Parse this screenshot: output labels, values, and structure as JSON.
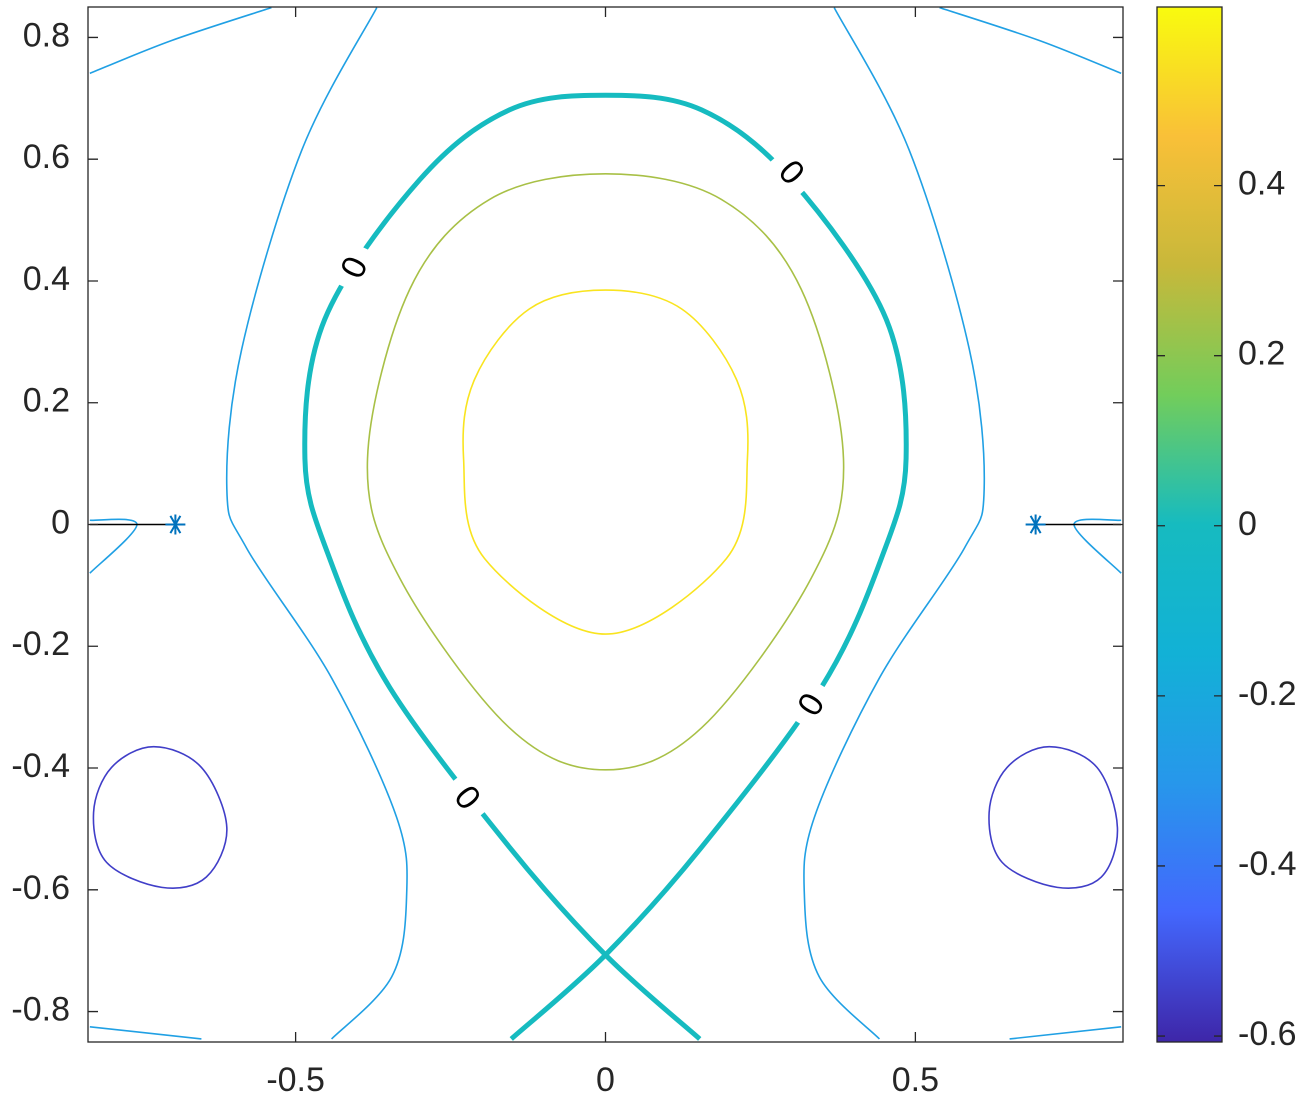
{
  "chart_data": {
    "type": "contour",
    "xlim": [
      -0.835,
      0.835
    ],
    "ylim": [
      -0.85,
      0.85
    ],
    "xticks": [
      -0.5,
      0,
      0.5
    ],
    "yticks": [
      -0.8,
      -0.6,
      -0.4,
      -0.2,
      0,
      0.2,
      0.4,
      0.6,
      0.8
    ],
    "contours": [
      {
        "level": 0.55,
        "closed": true,
        "x": [
          0,
          0.123,
          0.211,
          0.229,
          0.195,
          0,
          -0.195,
          -0.229,
          -0.211,
          -0.123
        ],
        "y": [
          0.385,
          0.354,
          0.239,
          0.108,
          -0.056,
          -0.18,
          -0.056,
          0.108,
          0.239,
          0.354
        ]
      },
      {
        "level": 0.25,
        "closed": true,
        "x": [
          0,
          0.187,
          0.316,
          0.384,
          0.332,
          0.155,
          0,
          -0.155,
          -0.332,
          -0.384,
          -0.316,
          -0.187
        ],
        "y": [
          0.576,
          0.534,
          0.386,
          0.108,
          -0.088,
          -0.334,
          -0.403,
          -0.334,
          -0.088,
          0.108,
          0.386,
          0.534
        ]
      },
      {
        "level": 0,
        "closed": false,
        "bold": true,
        "x": [
          -0.152,
          0,
          0.155,
          0.348,
          0.445,
          0.485,
          0.453,
          0.3,
          0.155,
          0,
          -0.155,
          -0.3,
          -0.453,
          -0.485,
          -0.445,
          -0.348,
          -0.155,
          0,
          0.152
        ],
        "y": [
          -0.845,
          -0.707,
          -0.53,
          -0.268,
          -0.056,
          0.108,
          0.337,
          0.566,
          0.681,
          0.705,
          0.681,
          0.566,
          0.337,
          0.108,
          -0.056,
          -0.268,
          -0.53,
          -0.707,
          -0.845
        ]
      },
      {
        "level": -0.25,
        "closed": false,
        "x": [
          -0.369,
          -0.49,
          -0.587,
          -0.611,
          -0.579,
          -0.442,
          -0.337,
          -0.321,
          -0.345,
          -0.442
        ],
        "y": [
          0.849,
          0.615,
          0.288,
          0.059,
          -0.039,
          -0.252,
          -0.481,
          -0.612,
          -0.743,
          -0.845
        ]
      },
      {
        "level": -0.25,
        "closed": false,
        "x": [
          0.369,
          0.49,
          0.587,
          0.611,
          0.579,
          0.442,
          0.337,
          0.321,
          0.345,
          0.442
        ],
        "y": [
          0.849,
          0.615,
          0.288,
          0.059,
          -0.039,
          -0.252,
          -0.481,
          -0.612,
          -0.743,
          -0.845
        ]
      },
      {
        "level": -0.25,
        "closed": false,
        "x": [
          -0.832,
          -0.7,
          -0.539
        ],
        "y": [
          0.741,
          0.795,
          0.849
        ]
      },
      {
        "level": -0.25,
        "closed": false,
        "x": [
          0.832,
          0.7,
          0.539
        ],
        "y": [
          0.741,
          0.795,
          0.849
        ]
      },
      {
        "level": -0.25,
        "closed": false,
        "x": [
          -0.832,
          -0.652
        ],
        "y": [
          -0.825,
          -0.845
        ]
      },
      {
        "level": -0.25,
        "closed": false,
        "x": [
          0.832,
          0.652
        ],
        "y": [
          -0.825,
          -0.845
        ]
      },
      {
        "level": -0.25,
        "closed": false,
        "x": [
          -0.832,
          -0.756,
          -0.832
        ],
        "y": [
          0.007,
          0,
          -0.08
        ]
      },
      {
        "level": -0.25,
        "closed": false,
        "x": [
          0.832,
          0.756,
          0.832
        ],
        "y": [
          0.007,
          0,
          -0.08
        ]
      },
      {
        "level": -0.55,
        "closed": true,
        "x": [
          -0.729,
          -0.652,
          -0.611,
          -0.644,
          -0.716,
          -0.805,
          -0.826,
          -0.797
        ],
        "y": [
          -0.365,
          -0.399,
          -0.498,
          -0.579,
          -0.596,
          -0.555,
          -0.473,
          -0.399
        ]
      },
      {
        "level": -0.55,
        "closed": true,
        "x": [
          0.716,
          0.793,
          0.826,
          0.8,
          0.729,
          0.64,
          0.619,
          0.648
        ],
        "y": [
          -0.365,
          -0.399,
          -0.498,
          -0.579,
          -0.596,
          -0.555,
          -0.473,
          -0.399
        ]
      }
    ],
    "clabels": [
      {
        "text": "0",
        "x": 0.3,
        "y": 0.578
      },
      {
        "text": "0",
        "x": -0.405,
        "y": 0.422
      },
      {
        "text": "0",
        "x": 0.332,
        "y": -0.296
      },
      {
        "text": "0",
        "x": -0.223,
        "y": -0.449
      }
    ],
    "segments": [
      {
        "color": "#000000",
        "x": [
          -0.832,
          -0.694
        ],
        "y": [
          0,
          0
        ]
      },
      {
        "color": "#000000",
        "x": [
          0.694,
          0.832
        ],
        "y": [
          0,
          0
        ]
      }
    ],
    "markers": {
      "color": "#0072bd",
      "x": [
        -0.694,
        0.694
      ],
      "y": [
        0,
        0
      ]
    },
    "colorbar": {
      "clim": [
        -0.607,
        0.61
      ],
      "ticks": [
        -0.6,
        -0.4,
        -0.2,
        0,
        0.2,
        0.4
      ]
    }
  }
}
